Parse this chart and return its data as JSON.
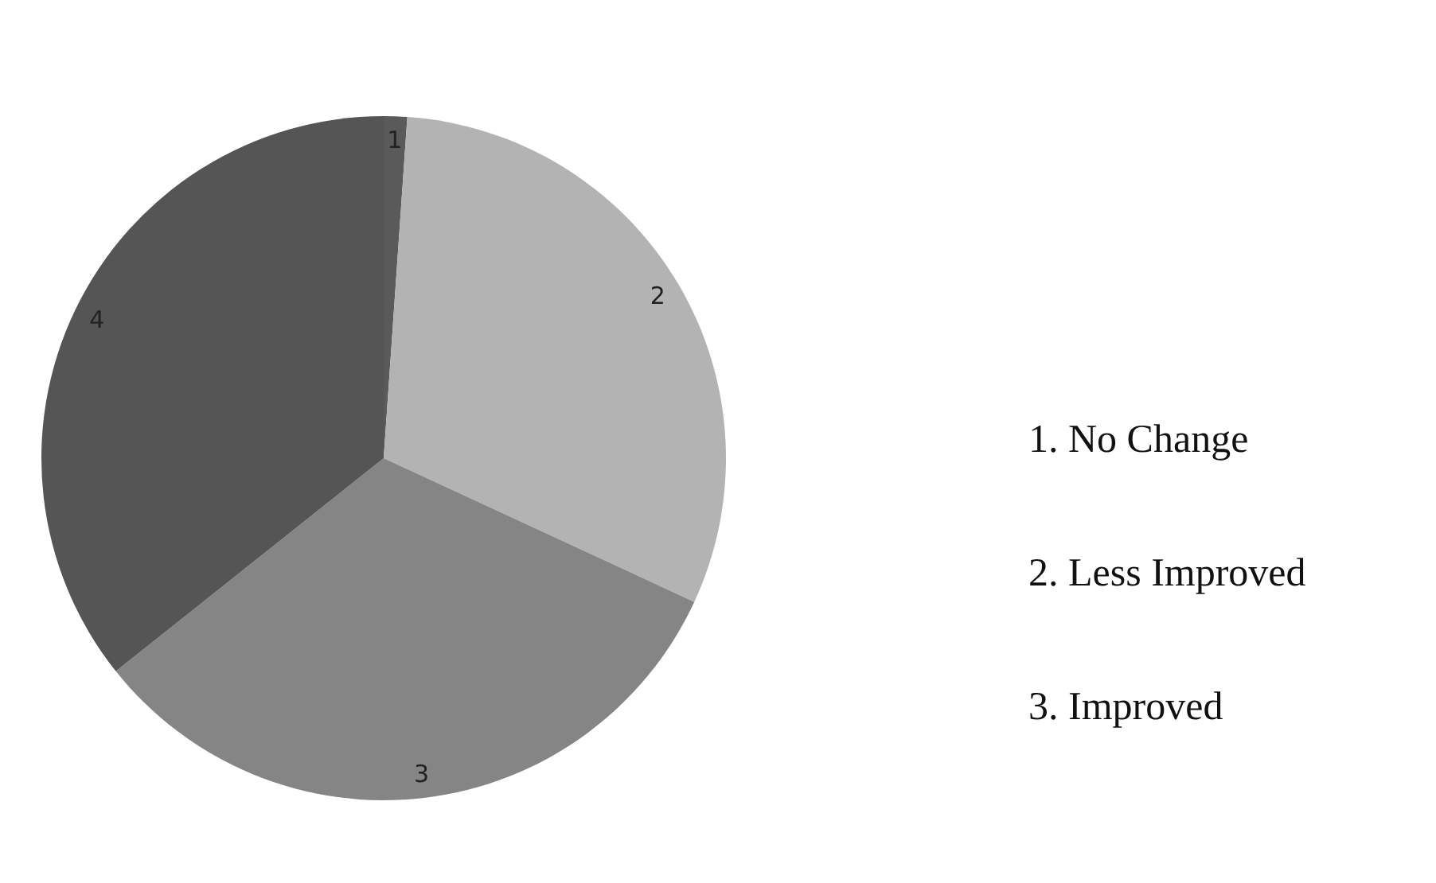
{
  "chart_data": {
    "type": "pie",
    "categories": [
      "1",
      "2",
      "3",
      "4"
    ],
    "values": [
      1.1,
      30.8,
      32.4,
      35.7
    ],
    "colors": [
      "#5a5a5a",
      "#b3b3b3",
      "#858585",
      "#555555"
    ],
    "annotations": [
      "1. No Change",
      "2. Less Improved",
      "3. Improved"
    ]
  }
}
